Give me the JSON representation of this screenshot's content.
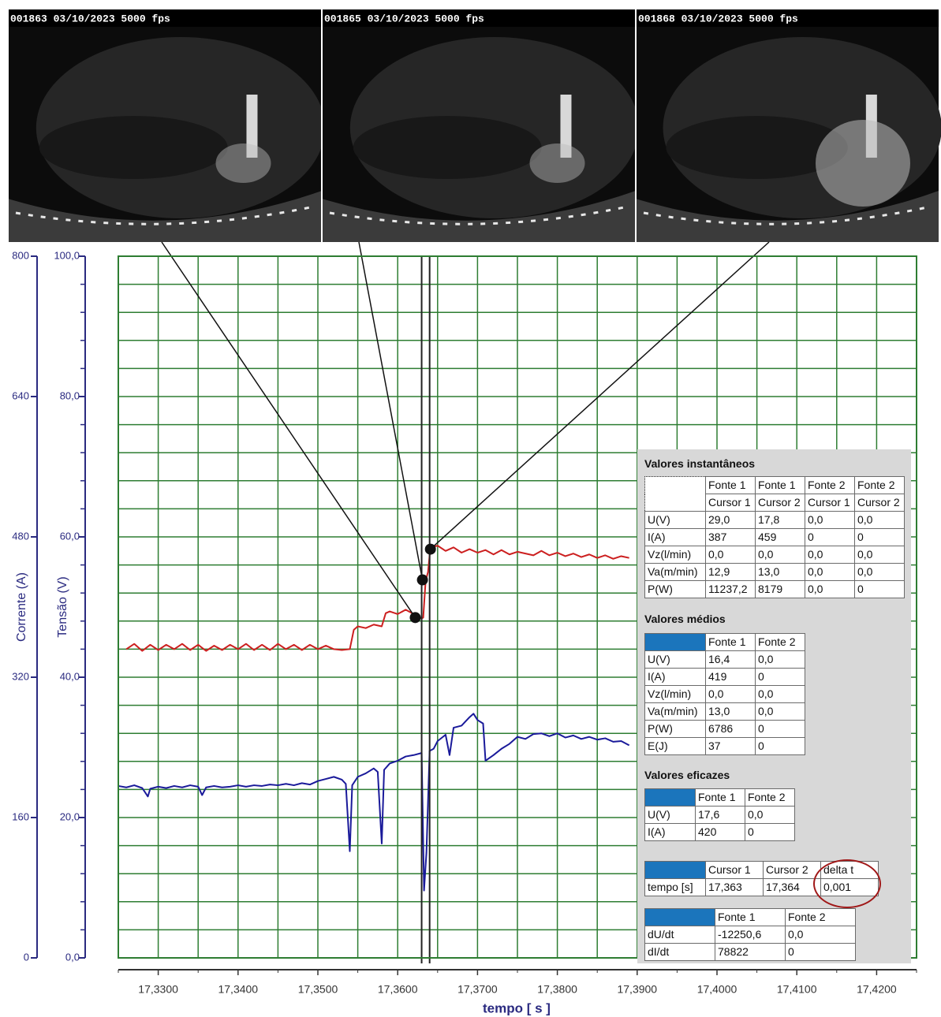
{
  "frames": [
    {
      "label": "001863 03/10/2023 5000 fps"
    },
    {
      "label": "001865 03/10/2023 5000 fps"
    },
    {
      "label": "001868 03/10/2023 5000 fps"
    }
  ],
  "chart_data": {
    "type": "line",
    "xlabel": "tempo [ s ]",
    "ylabel": "Corrente (A)",
    "y2label": "Tensão (V)",
    "xlim": [
      17.325,
      17.425
    ],
    "xticks": [
      {
        "value": 17.33,
        "label": "17,3300"
      },
      {
        "value": 17.34,
        "label": "17,3400"
      },
      {
        "value": 17.35,
        "label": "17,3500"
      },
      {
        "value": 17.36,
        "label": "17,3600"
      },
      {
        "value": 17.37,
        "label": "17,3700"
      },
      {
        "value": 17.38,
        "label": "17,3800"
      },
      {
        "value": 17.39,
        "label": "17,3900"
      },
      {
        "value": 17.4,
        "label": "17,4000"
      },
      {
        "value": 17.41,
        "label": "17,4100"
      },
      {
        "value": 17.42,
        "label": "17,4200"
      }
    ],
    "xminor": [
      17.325,
      17.335,
      17.345,
      17.355,
      17.365,
      17.375,
      17.385,
      17.395,
      17.405,
      17.415,
      17.425
    ],
    "ylim": [
      0,
      800
    ],
    "yticks": [
      0,
      160,
      320,
      480,
      640,
      800
    ],
    "y2lim": [
      0,
      100
    ],
    "y2ticks": [
      {
        "value": 0,
        "label": "0,0"
      },
      {
        "value": 20,
        "label": "20,0"
      },
      {
        "value": 40,
        "label": "40,0"
      },
      {
        "value": 60,
        "label": "60,0"
      },
      {
        "value": 80,
        "label": "80,0"
      },
      {
        "value": 100,
        "label": "100,0"
      }
    ],
    "y2minor": [
      4,
      8,
      12,
      16,
      24,
      28,
      32,
      36,
      44,
      48,
      52,
      56,
      64,
      68,
      72,
      76,
      84,
      88,
      92,
      96
    ],
    "grid": true,
    "grid_color": "#2e7d32",
    "axis_color": "#2a2a80",
    "cursors": [
      17.363,
      17.364
    ],
    "highlights": {
      "x": [
        17.3622,
        17.3631,
        17.3641
      ],
      "values": [
        388,
        431,
        466
      ]
    },
    "series": [
      {
        "color": "#cc1f1f",
        "axis": "y",
        "x": [
          17.326,
          17.327,
          17.328,
          17.329,
          17.33,
          17.331,
          17.332,
          17.333,
          17.334,
          17.335,
          17.336,
          17.337,
          17.338,
          17.339,
          17.34,
          17.341,
          17.342,
          17.343,
          17.344,
          17.345,
          17.346,
          17.347,
          17.348,
          17.349,
          17.35,
          17.351,
          17.352,
          17.353,
          17.354,
          17.3545,
          17.355,
          17.356,
          17.357,
          17.358,
          17.3585,
          17.359,
          17.36,
          17.361,
          17.362,
          17.363,
          17.3632,
          17.3635,
          17.3638,
          17.364,
          17.3642,
          17.365,
          17.366,
          17.367,
          17.368,
          17.369,
          17.37,
          17.371,
          17.372,
          17.373,
          17.374,
          17.375,
          17.376,
          17.377,
          17.378,
          17.379,
          17.38,
          17.381,
          17.382,
          17.383,
          17.384,
          17.385,
          17.386,
          17.387,
          17.388,
          17.389
        ],
        "values": [
          352,
          358,
          350,
          357,
          351,
          357,
          352,
          358,
          351,
          357,
          350,
          356,
          351,
          357,
          352,
          358,
          351,
          357,
          351,
          358,
          352,
          357,
          351,
          357,
          352,
          356,
          352,
          351,
          352,
          374,
          378,
          376,
          380,
          378,
          393,
          395,
          392,
          397,
          392,
          387,
          388,
          430,
          440,
          459,
          468,
          470,
          464,
          468,
          462,
          466,
          462,
          465,
          460,
          465,
          460,
          463,
          461,
          459,
          464,
          459,
          462,
          458,
          461,
          457,
          460,
          456,
          459,
          455,
          458,
          456
        ]
      },
      {
        "color": "#1a1a9a",
        "axis": "y2",
        "x": [
          17.325,
          17.326,
          17.327,
          17.328,
          17.3287,
          17.329,
          17.33,
          17.331,
          17.332,
          17.333,
          17.334,
          17.335,
          17.3355,
          17.336,
          17.337,
          17.338,
          17.339,
          17.34,
          17.341,
          17.342,
          17.343,
          17.344,
          17.345,
          17.346,
          17.347,
          17.348,
          17.349,
          17.35,
          17.351,
          17.352,
          17.353,
          17.3535,
          17.354,
          17.3543,
          17.355,
          17.356,
          17.357,
          17.3575,
          17.358,
          17.3583,
          17.359,
          17.36,
          17.361,
          17.362,
          17.363,
          17.3633,
          17.3636,
          17.364,
          17.3645,
          17.365,
          17.366,
          17.3665,
          17.367,
          17.368,
          17.369,
          17.3695,
          17.37,
          17.3707,
          17.371,
          17.372,
          17.373,
          17.374,
          17.375,
          17.376,
          17.377,
          17.378,
          17.379,
          17.38,
          17.381,
          17.382,
          17.383,
          17.384,
          17.385,
          17.386,
          17.387,
          17.388,
          17.389
        ],
        "values": [
          24.5,
          24.3,
          24.6,
          24.2,
          23.0,
          24.1,
          24.4,
          24.2,
          24.5,
          24.3,
          24.6,
          24.4,
          23.2,
          24.3,
          24.5,
          24.3,
          24.4,
          24.6,
          24.4,
          24.6,
          24.5,
          24.7,
          24.6,
          24.8,
          24.6,
          24.9,
          24.7,
          25.2,
          25.5,
          25.8,
          25.4,
          24.8,
          15.2,
          24.6,
          25.8,
          26.3,
          27.0,
          26.5,
          16.3,
          26.8,
          27.7,
          28.1,
          28.7,
          28.9,
          29.2,
          9.6,
          15,
          29.5,
          29.8,
          30.9,
          31.8,
          28.9,
          32.8,
          33.1,
          34.3,
          34.8,
          33.9,
          33.4,
          28.1,
          28.9,
          29.8,
          30.5,
          31.5,
          31.2,
          31.9,
          32.0,
          31.6,
          32.0,
          31.4,
          31.7,
          31.2,
          31.5,
          31.1,
          31.3,
          30.8,
          30.9,
          30.3
        ]
      }
    ]
  },
  "panel": {
    "instant": {
      "title": "Valores instantâneos",
      "columns": [
        "Fonte 1",
        "Fonte 1",
        "Fonte 2",
        "Fonte 2"
      ],
      "subcolumns": [
        "Cursor 1",
        "Cursor 2",
        "Cursor 1",
        "Cursor 2"
      ],
      "rows": [
        [
          "U(V)",
          "29,0",
          "17,8",
          "0,0",
          "0,0"
        ],
        [
          "I(A)",
          "387",
          "459",
          "0",
          "0"
        ],
        [
          "Vz(l/min)",
          "0,0",
          "0,0",
          "0,0",
          "0,0"
        ],
        [
          "Va(m/min)",
          "12,9",
          "13,0",
          "0,0",
          "0,0"
        ],
        [
          "P(W)",
          "11237,2",
          "8179",
          "0,0",
          "0"
        ]
      ]
    },
    "means": {
      "title": "Valores médios",
      "columns": [
        "Fonte 1",
        "Fonte 2"
      ],
      "rows": [
        [
          "U(V)",
          "16,4",
          "0,0"
        ],
        [
          "I(A)",
          "419",
          "0"
        ],
        [
          "Vz(l/min)",
          "0,0",
          "0,0"
        ],
        [
          "Va(m/min)",
          "13,0",
          "0,0"
        ],
        [
          "P(W)",
          "6786",
          "0"
        ],
        [
          "E(J)",
          "37",
          "0"
        ]
      ]
    },
    "rms": {
      "title": "Valores eficazes",
      "columns": [
        "Fonte 1",
        "Fonte 2"
      ],
      "rows": [
        [
          "U(V)",
          "17,6",
          "0,0"
        ],
        [
          "I(A)",
          "420",
          "0"
        ]
      ]
    },
    "time": {
      "columns": [
        "Cursor 1",
        "Cursor 2",
        "delta t"
      ],
      "rows": [
        [
          "tempo [s]",
          "17,363",
          "17,364",
          "0,001"
        ]
      ]
    },
    "derivatives": {
      "columns": [
        "Fonte 1",
        "Fonte 2"
      ],
      "rows": [
        [
          "dU/dt",
          "-12250,6",
          "0,0"
        ],
        [
          "dI/dt",
          "78822",
          "0"
        ]
      ]
    }
  }
}
